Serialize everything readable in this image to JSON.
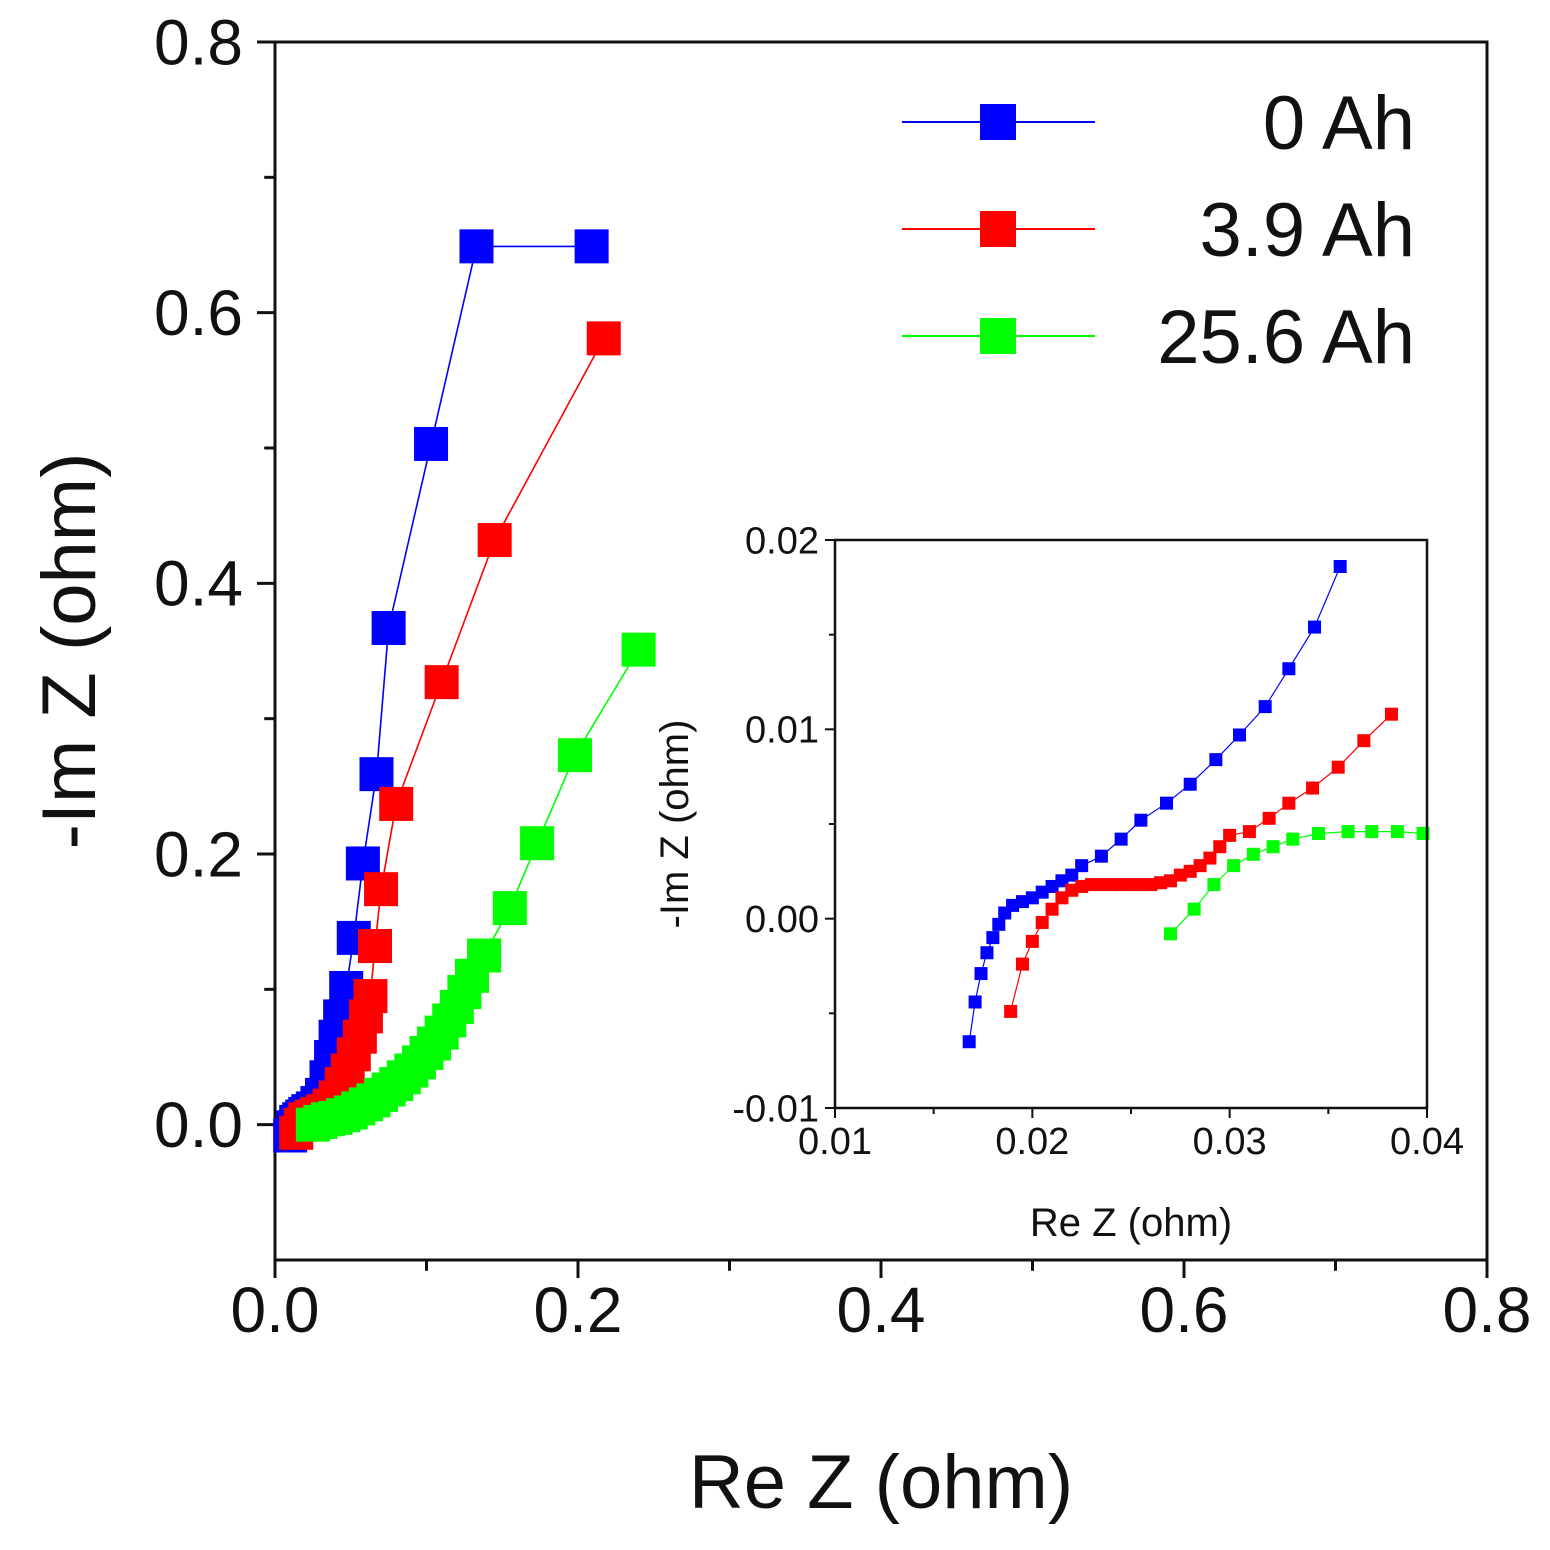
{
  "chart_data": [
    {
      "type": "scatter",
      "xlabel": "Re Z (ohm)",
      "ylabel": "-Im Z (ohm)",
      "xlim": [
        0.0,
        0.8
      ],
      "ylim": [
        -0.1,
        0.8
      ],
      "xticks": [
        "0.0",
        "0.2",
        "0.4",
        "0.6",
        "0.8"
      ],
      "yticks": [
        "0.0",
        "0.2",
        "0.4",
        "0.6",
        "0.8"
      ],
      "legend_position": "top-right",
      "series": [
        {
          "name": "0 Ah",
          "color": "#0000ff",
          "x": [
            0.01,
            0.012,
            0.014,
            0.016,
            0.018,
            0.02,
            0.022,
            0.025,
            0.028,
            0.031,
            0.034,
            0.037,
            0.04,
            0.043,
            0.047,
            0.052,
            0.058,
            0.067,
            0.075,
            0.103,
            0.133,
            0.209
          ],
          "y": [
            -0.008,
            -0.002,
            0.002,
            0.004,
            0.006,
            0.008,
            0.01,
            0.012,
            0.016,
            0.022,
            0.035,
            0.05,
            0.065,
            0.08,
            0.101,
            0.138,
            0.193,
            0.259,
            0.367,
            0.503,
            0.649,
            0.649
          ]
        },
        {
          "name": "3.9 Ah",
          "color": "#ff0000",
          "x": [
            0.014,
            0.017,
            0.02,
            0.024,
            0.028,
            0.032,
            0.036,
            0.04,
            0.044,
            0.048,
            0.052,
            0.056,
            0.06,
            0.063,
            0.066,
            0.07,
            0.08,
            0.11,
            0.145,
            0.217
          ],
          "y": [
            -0.006,
            0.0,
            0.004,
            0.006,
            0.008,
            0.01,
            0.014,
            0.02,
            0.03,
            0.04,
            0.052,
            0.065,
            0.08,
            0.095,
            0.132,
            0.174,
            0.237,
            0.327,
            0.432,
            0.581
          ]
        },
        {
          "name": "25.6 Ah",
          "color": "#00ff00",
          "x": [
            0.025,
            0.03,
            0.035,
            0.04,
            0.045,
            0.05,
            0.055,
            0.06,
            0.065,
            0.07,
            0.075,
            0.08,
            0.085,
            0.09,
            0.095,
            0.1,
            0.105,
            0.11,
            0.115,
            0.12,
            0.125,
            0.13,
            0.138,
            0.155,
            0.173,
            0.198,
            0.24
          ],
          "y": [
            0.0,
            0.002,
            0.004,
            0.005,
            0.007,
            0.009,
            0.012,
            0.015,
            0.018,
            0.022,
            0.026,
            0.03,
            0.035,
            0.04,
            0.046,
            0.053,
            0.06,
            0.068,
            0.077,
            0.087,
            0.098,
            0.11,
            0.125,
            0.16,
            0.208,
            0.273,
            0.351
          ]
        }
      ]
    },
    {
      "type": "scatter",
      "inset": true,
      "xlabel": "Re Z (ohm)",
      "ylabel": "-Im Z (ohm)",
      "xlim": [
        0.01,
        0.04
      ],
      "ylim": [
        -0.01,
        0.02
      ],
      "xticks": [
        "0.01",
        "0.02",
        "0.03",
        "0.04"
      ],
      "yticks": [
        "-0.01",
        "0.00",
        "0.01",
        "0.02"
      ],
      "series": [
        {
          "name": "0 Ah",
          "color": "#0000ff",
          "x": [
            0.0168,
            0.0171,
            0.0174,
            0.0177,
            0.018,
            0.0183,
            0.0186,
            0.019,
            0.0195,
            0.02,
            0.0205,
            0.021,
            0.0215,
            0.022,
            0.0225,
            0.0235,
            0.0245,
            0.0255,
            0.0268,
            0.028,
            0.0293,
            0.0305,
            0.0318,
            0.033,
            0.0343,
            0.0356
          ],
          "y": [
            -0.0065,
            -0.0044,
            -0.0029,
            -0.0018,
            -0.001,
            -0.0003,
            0.0003,
            0.0007,
            0.0009,
            0.0011,
            0.0014,
            0.0017,
            0.002,
            0.0023,
            0.0028,
            0.0033,
            0.0042,
            0.0052,
            0.0061,
            0.0071,
            0.0084,
            0.0097,
            0.0112,
            0.0132,
            0.0154,
            0.0186
          ]
        },
        {
          "name": "3.9 Ah",
          "color": "#ff0000",
          "x": [
            0.0189,
            0.0195,
            0.02,
            0.0205,
            0.021,
            0.0215,
            0.022,
            0.0225,
            0.023,
            0.0235,
            0.024,
            0.0245,
            0.025,
            0.0255,
            0.026,
            0.0265,
            0.027,
            0.0275,
            0.028,
            0.0285,
            0.029,
            0.0295,
            0.03,
            0.031,
            0.032,
            0.033,
            0.0342,
            0.0355,
            0.0368,
            0.0382
          ],
          "y": [
            -0.0049,
            -0.0024,
            -0.0012,
            -0.0002,
            0.0005,
            0.0011,
            0.0015,
            0.0017,
            0.0018,
            0.0018,
            0.0018,
            0.0018,
            0.0018,
            0.0018,
            0.0018,
            0.0019,
            0.002,
            0.0023,
            0.0025,
            0.0028,
            0.0032,
            0.0038,
            0.0044,
            0.0046,
            0.0053,
            0.0061,
            0.0069,
            0.008,
            0.0094,
            0.0108
          ]
        },
        {
          "name": "25.6 Ah",
          "color": "#00ff00",
          "x": [
            0.027,
            0.0282,
            0.0292,
            0.0302,
            0.0312,
            0.0322,
            0.0332,
            0.0345,
            0.036,
            0.0372,
            0.0385,
            0.0398
          ],
          "y": [
            -0.0008,
            0.0005,
            0.0018,
            0.0028,
            0.0034,
            0.0038,
            0.0042,
            0.0045,
            0.0046,
            0.0046,
            0.0046,
            0.0045
          ]
        }
      ]
    }
  ]
}
